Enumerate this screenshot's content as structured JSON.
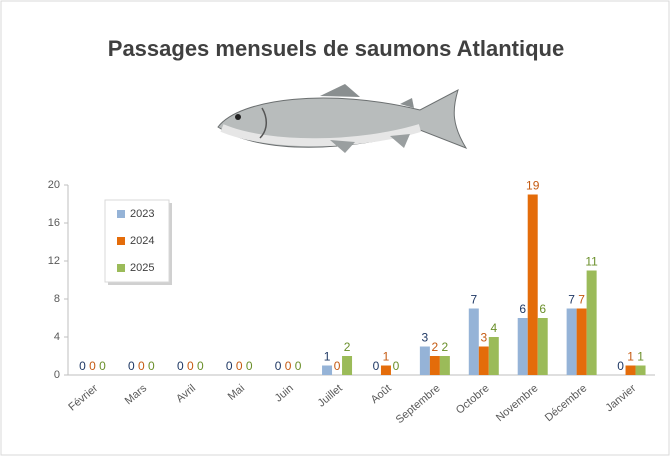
{
  "chart_data": {
    "type": "bar",
    "title": "Passages mensuels de saumons Atlantique",
    "categories": [
      "Février",
      "Mars",
      "Avril",
      "Mai",
      "Juin",
      "Juillet",
      "Août",
      "Septembre",
      "Octobre",
      "Novembre",
      "Décembre",
      "Janvier"
    ],
    "series": [
      {
        "name": "2023",
        "color": "#95b3d7",
        "label_color": "#1f3864",
        "values": [
          0,
          0,
          0,
          0,
          0,
          1,
          0,
          3,
          7,
          6,
          7,
          0
        ]
      },
      {
        "name": "2024",
        "color": "#e46c0a",
        "label_color": "#c55a11",
        "values": [
          0,
          0,
          0,
          0,
          0,
          0,
          1,
          2,
          3,
          19,
          7,
          1
        ]
      },
      {
        "name": "2025",
        "color": "#9bbb59",
        "label_color": "#6a8f2a",
        "values": [
          0,
          0,
          0,
          0,
          0,
          2,
          0,
          2,
          4,
          6,
          11,
          1
        ]
      }
    ],
    "ylim": [
      0,
      20
    ],
    "yticks": [
      0,
      4,
      8,
      12,
      16,
      20
    ],
    "grid": false,
    "legend": "top-left"
  }
}
